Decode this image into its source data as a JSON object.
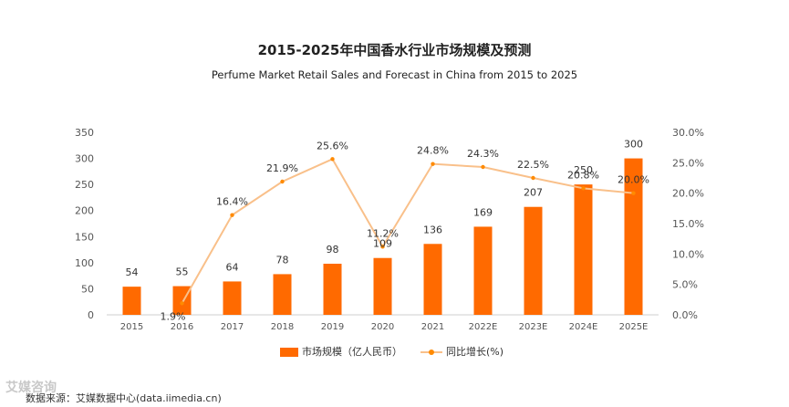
{
  "chart_data": {
    "type": "bar",
    "title": "2015-2025年中国香水行业市场规模及预测",
    "subtitle": "Perfume Market Retail Sales and Forecast in China from 2015 to 2025",
    "categories": [
      "2015",
      "2016",
      "2017",
      "2018",
      "2019",
      "2020",
      "2021",
      "2022E",
      "2023E",
      "2024E",
      "2025E"
    ],
    "series": [
      {
        "name": "市场规模（亿人民币）",
        "type": "bar",
        "axis": "left",
        "color": "#ff6a00",
        "values": [
          54,
          55,
          64,
          78,
          98,
          109,
          136,
          169,
          207,
          250,
          300
        ]
      },
      {
        "name": "同比增长(%)",
        "type": "line",
        "axis": "right",
        "color": "#f9c08a",
        "values": [
          null,
          1.9,
          16.4,
          21.9,
          25.6,
          11.2,
          24.8,
          24.3,
          22.5,
          20.8,
          20.0
        ],
        "labels": [
          "",
          "1.9%",
          "16.4%",
          "21.9%",
          "25.6%",
          "11.2%",
          "24.8%",
          "24.3%",
          "22.5%",
          "20.8%",
          "20.0%"
        ]
      }
    ],
    "y_left": {
      "min": 0,
      "max": 350,
      "ticks": [
        "0",
        "50",
        "100",
        "150",
        "200",
        "250",
        "300",
        "350"
      ]
    },
    "y_right": {
      "min": 0,
      "max": 30,
      "ticks": [
        "0.0%",
        "5.0%",
        "10.0%",
        "15.0%",
        "20.0%",
        "25.0%",
        "30.0%"
      ]
    },
    "grid": false,
    "legend_position": "bottom"
  },
  "source": "数据来源：艾媒数据中心(data.iimedia.cn)",
  "watermark": "艾媒咨询"
}
